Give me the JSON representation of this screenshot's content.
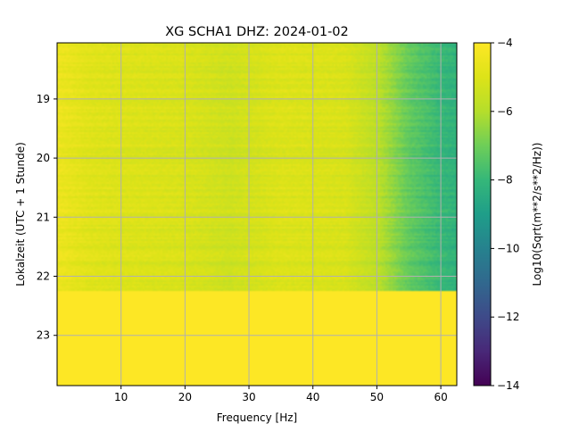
{
  "chart_data": {
    "type": "heatmap",
    "title": "XG SCHA1  DHZ: 2024-01-02",
    "xlabel": "Frequency [Hz]",
    "ylabel": "Lokalzeit (UTC + 1 Stunde)",
    "xlim": [
      0,
      62.5
    ],
    "ylim": [
      23.85,
      18.05
    ],
    "x_ticks": [
      10,
      20,
      30,
      40,
      50,
      60
    ],
    "y_ticks": [
      19,
      20,
      21,
      22,
      23
    ],
    "grid": true,
    "colormap": "viridis",
    "colorbar": {
      "label": "Log10(Sqrt(m**2/s**2/Hz))",
      "vmin": -14,
      "vmax": -4,
      "ticks": [
        -4,
        -6,
        -8,
        -10,
        -12,
        -14
      ],
      "tick_labels": [
        "−4",
        "−6",
        "−8",
        "−10",
        "−12",
        "−14"
      ]
    },
    "data_end_time": 22.25,
    "fill_value": -4,
    "spectrum_profile": [
      {
        "freq": 0,
        "value": -4.5
      },
      {
        "freq": 5,
        "value": -4.9
      },
      {
        "freq": 10,
        "value": -5.0
      },
      {
        "freq": 20,
        "value": -5.1
      },
      {
        "freq": 27,
        "value": -5.4
      },
      {
        "freq": 35,
        "value": -5.0
      },
      {
        "freq": 45,
        "value": -5.1
      },
      {
        "freq": 50,
        "value": -5.8
      },
      {
        "freq": 55,
        "value": -7.2
      },
      {
        "freq": 60,
        "value": -8.0
      },
      {
        "freq": 62.5,
        "value": -8.2
      }
    ],
    "colors": {
      "grid": "#b0b0b0",
      "axis": "#000000"
    }
  }
}
